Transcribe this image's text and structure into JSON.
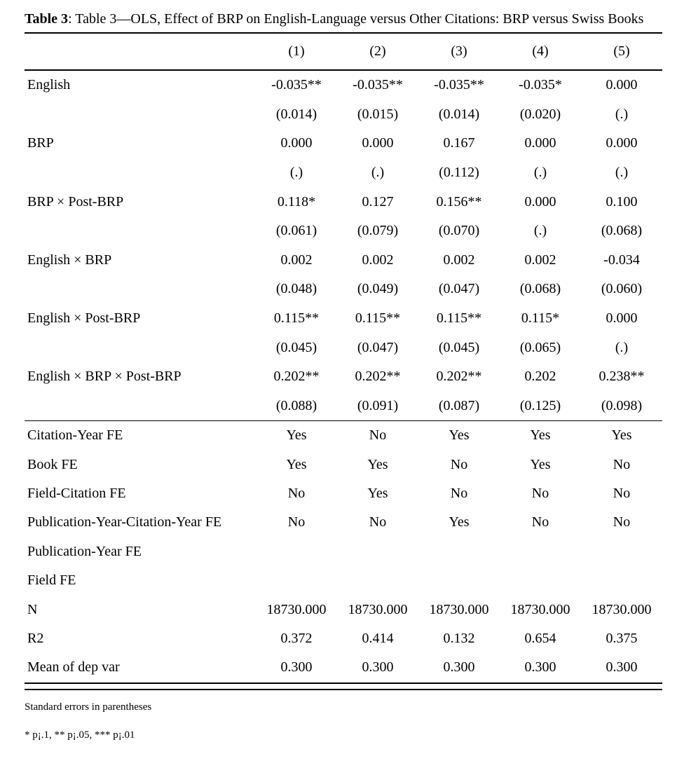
{
  "document": {
    "title_label": "Table 3",
    "title_rest": ": Table 3—OLS, Effect of BRP on English-Language versus Other Citations: BRP versus Swiss Books",
    "notes": [
      "Standard errors in parentheses",
      "* p¡.1, ** p¡.05, *** p¡.01"
    ]
  },
  "table": {
    "column_headers": [
      "(1)",
      "(2)",
      "(3)",
      "(4)",
      "(5)"
    ],
    "coefficient_rows": [
      {
        "label": "English",
        "values": [
          "-0.035**",
          "-0.035**",
          "-0.035**",
          "-0.035*",
          "0.000"
        ],
        "se": [
          "(0.014)",
          "(0.015)",
          "(0.014)",
          "(0.020)",
          "(.)"
        ]
      },
      {
        "label": "BRP",
        "values": [
          "0.000",
          "0.000",
          "0.167",
          "0.000",
          "0.000"
        ],
        "se": [
          "(.)",
          "(.)",
          "(0.112)",
          "(.)",
          "(.)"
        ]
      },
      {
        "label": "BRP × Post-BRP",
        "values": [
          "0.118*",
          "0.127",
          "0.156**",
          "0.000",
          "0.100"
        ],
        "se": [
          "(0.061)",
          "(0.079)",
          "(0.070)",
          "(.)",
          "(0.068)"
        ]
      },
      {
        "label": "English × BRP",
        "values": [
          "0.002",
          "0.002",
          "0.002",
          "0.002",
          "-0.034"
        ],
        "se": [
          "(0.048)",
          "(0.049)",
          "(0.047)",
          "(0.068)",
          "(0.060)"
        ]
      },
      {
        "label": "English × Post-BRP",
        "values": [
          "0.115**",
          "0.115**",
          "0.115**",
          "0.115*",
          "0.000"
        ],
        "se": [
          "(0.045)",
          "(0.047)",
          "(0.045)",
          "(0.065)",
          "(.)"
        ]
      },
      {
        "label": "English × BRP × Post-BRP",
        "values": [
          "0.202**",
          "0.202**",
          "0.202**",
          "0.202",
          "0.238**"
        ],
        "se": [
          "(0.088)",
          "(0.091)",
          "(0.087)",
          "(0.125)",
          "(0.098)"
        ]
      }
    ],
    "stat_rows": [
      {
        "label": "Citation-Year FE",
        "values": [
          "Yes",
          "No",
          "Yes",
          "Yes",
          "Yes"
        ]
      },
      {
        "label": "Book FE",
        "values": [
          "Yes",
          "Yes",
          "No",
          "Yes",
          "No"
        ]
      },
      {
        "label": "Field-Citation FE",
        "values": [
          "No",
          "Yes",
          "No",
          "No",
          "No"
        ]
      },
      {
        "label": "Publication-Year-Citation-Year FE",
        "values": [
          "No",
          "No",
          "Yes",
          "No",
          "No"
        ]
      },
      {
        "label": "Publication-Year FE",
        "values": [
          "",
          "",
          "",
          "",
          ""
        ]
      },
      {
        "label": "Field FE",
        "values": [
          "",
          "",
          "",
          "",
          ""
        ]
      },
      {
        "label": "N",
        "values": [
          "18730.000",
          "18730.000",
          "18730.000",
          "18730.000",
          "18730.000"
        ]
      },
      {
        "label": "R2",
        "values": [
          "0.372",
          "0.414",
          "0.132",
          "0.654",
          "0.375"
        ]
      },
      {
        "label": "Mean of dep var",
        "values": [
          "0.300",
          "0.300",
          "0.300",
          "0.300",
          "0.300"
        ]
      }
    ]
  }
}
